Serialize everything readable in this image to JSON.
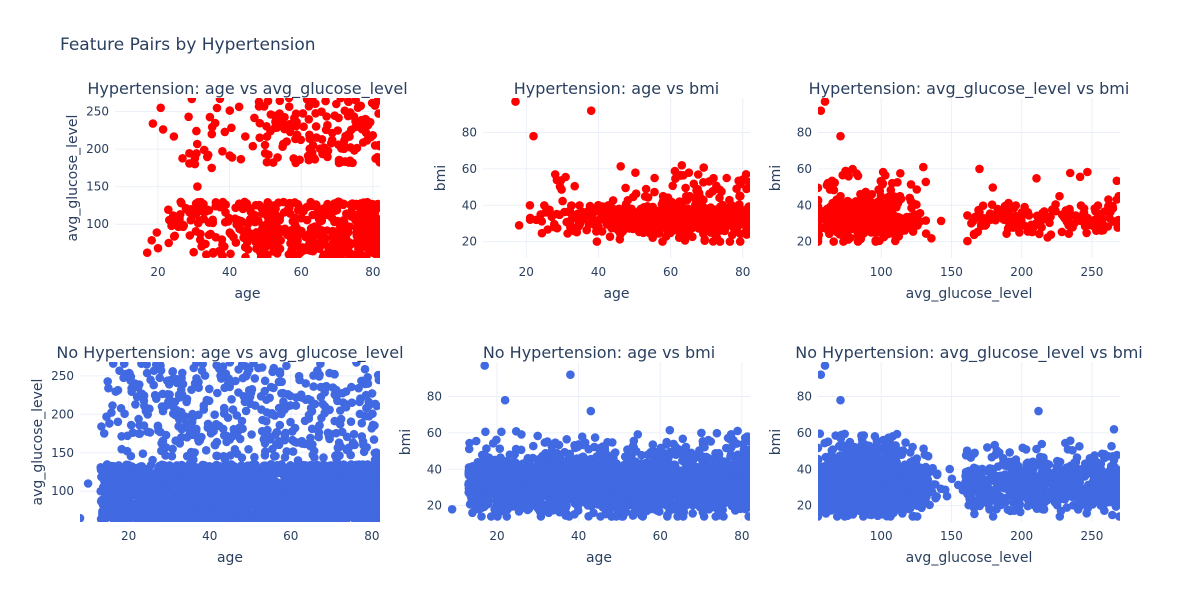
{
  "figure": {
    "title": "Feature Pairs by Hypertension"
  },
  "colors": {
    "hypertension": "#ff0000",
    "no_hypertension": "#4169e1",
    "grid": "#ebf0f8",
    "text": "#2a3f5f"
  },
  "chart_data": [
    {
      "type": "scatter",
      "title": "Hypertension: age vs avg_glucose_level",
      "xlabel": "age",
      "ylabel": "avg_glucose_level",
      "xlim": [
        8,
        82
      ],
      "ylim": [
        55,
        268
      ],
      "xticks": [
        20,
        40,
        60,
        80
      ],
      "yticks": [
        100,
        150,
        200,
        250
      ],
      "color": "#ff0000",
      "gen": {
        "seed": 11,
        "xlo": 17,
        "xhi": 82,
        "cluster": [
          [
            60,
            55,
            130,
            0.72
          ],
          [
            90,
            180,
            268,
            0.28
          ]
        ],
        "n": 650,
        "agebias": 0.65,
        "outliers": [
          [
            17,
            62
          ],
          [
            20,
            68
          ],
          [
            23,
            75
          ],
          [
            24,
            108
          ],
          [
            26,
            107
          ],
          [
            31,
            150
          ],
          [
            35,
            175
          ],
          [
            38,
            197
          ]
        ]
      }
    },
    {
      "type": "scatter",
      "title": "Hypertension: age vs bmi",
      "xlabel": "age",
      "ylabel": "bmi",
      "xlim": [
        8,
        82
      ],
      "ylim": [
        11,
        99
      ],
      "xticks": [
        20,
        40,
        60,
        80
      ],
      "yticks": [
        20,
        40,
        60,
        80
      ],
      "color": "#ff0000",
      "gen": {
        "seed": 23,
        "xlo": 17,
        "xhi": 82,
        "cluster": [
          [
            30,
            20,
            45,
            0.93
          ],
          [
            40,
            40,
            62,
            0.07
          ]
        ],
        "n": 620,
        "agebias": 0.65,
        "outliers": [
          [
            17,
            97
          ],
          [
            38,
            92
          ],
          [
            22,
            78
          ],
          [
            18,
            29
          ],
          [
            21,
            40
          ],
          [
            24,
            35
          ],
          [
            28,
            57
          ]
        ]
      }
    },
    {
      "type": "scatter",
      "title": "Hypertension: avg_glucose_level vs bmi",
      "xlabel": "avg_glucose_level",
      "ylabel": "bmi",
      "xlim": [
        55,
        270
      ],
      "ylim": [
        11,
        99
      ],
      "xticks": [
        100,
        150,
        200,
        250
      ],
      "yticks": [
        20,
        40,
        60,
        80
      ],
      "color": "#ff0000",
      "gen": {
        "seed": 37,
        "xlo": 55,
        "xhi": 270,
        "cluster": [
          [
            30,
            20,
            45,
            0.93
          ],
          [
            40,
            40,
            62,
            0.07
          ]
        ],
        "n": 620,
        "glucose": true,
        "outliers": [
          [
            57,
            92
          ],
          [
            60,
            97
          ],
          [
            71,
            78
          ],
          [
            130,
            61
          ],
          [
            170,
            60
          ],
          [
            265,
            31
          ]
        ]
      }
    },
    {
      "type": "scatter",
      "title": "No Hypertension: age vs avg_glucose_level",
      "xlabel": "age",
      "ylabel": "avg_glucose_level",
      "xlim": [
        8,
        82
      ],
      "ylim": [
        60,
        268
      ],
      "xticks": [
        20,
        40,
        60,
        80
      ],
      "yticks": [
        100,
        150,
        200,
        250
      ],
      "color": "#4169e1",
      "gen": {
        "seed": 53,
        "xlo": 13,
        "xhi": 82,
        "cluster": [
          [
            60,
            60,
            135,
            0.82
          ],
          [
            90,
            140,
            268,
            0.18
          ]
        ],
        "n": 2600,
        "agebias": 0.15,
        "outliers": [
          [
            8,
            65
          ],
          [
            10,
            110
          ],
          [
            15,
            234
          ],
          [
            28,
            257
          ],
          [
            48,
            265
          ]
        ]
      }
    },
    {
      "type": "scatter",
      "title": "No Hypertension: age vs bmi",
      "xlabel": "age",
      "ylabel": "bmi",
      "xlim": [
        8,
        82
      ],
      "ylim": [
        11,
        99
      ],
      "xticks": [
        20,
        40,
        60,
        80
      ],
      "yticks": [
        20,
        40,
        60,
        80
      ],
      "color": "#4169e1",
      "gen": {
        "seed": 71,
        "xlo": 13,
        "xhi": 82,
        "cluster": [
          [
            28,
            14,
            48,
            0.95
          ],
          [
            40,
            40,
            62,
            0.05
          ]
        ],
        "n": 2600,
        "agebias": 0.1,
        "outliers": [
          [
            17,
            97
          ],
          [
            38,
            92
          ],
          [
            22,
            78
          ],
          [
            43,
            72
          ],
          [
            9,
            18
          ]
        ]
      }
    },
    {
      "type": "scatter",
      "title": "No Hypertension: avg_glucose_level vs bmi",
      "xlabel": "avg_glucose_level",
      "ylabel": "bmi",
      "xlim": [
        55,
        270
      ],
      "ylim": [
        11,
        99
      ],
      "xticks": [
        100,
        150,
        200,
        250
      ],
      "yticks": [
        20,
        40,
        60,
        80
      ],
      "color": "#4169e1",
      "gen": {
        "seed": 89,
        "xlo": 55,
        "xhi": 270,
        "cluster": [
          [
            28,
            14,
            48,
            0.95
          ],
          [
            40,
            40,
            62,
            0.05
          ]
        ],
        "n": 2600,
        "glucose": true,
        "outliers": [
          [
            57,
            92
          ],
          [
            60,
            97
          ],
          [
            71,
            78
          ],
          [
            212,
            72
          ],
          [
            250,
            42
          ],
          [
            268,
            29
          ]
        ]
      }
    }
  ]
}
